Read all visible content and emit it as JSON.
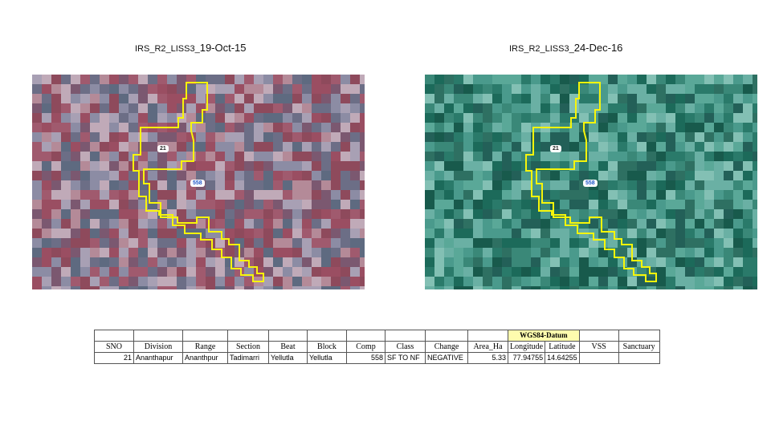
{
  "left_image": {
    "title_prefix": "IRS_R2_LISS3_",
    "title_date": "19-Oct-15",
    "polygon_labels": [
      "21",
      "558"
    ],
    "palette": [
      "#8e4a5c",
      "#a05a6e",
      "#7b5870",
      "#6c6e86",
      "#8c8ca4",
      "#b48a98",
      "#9a4e62",
      "#5e6a80",
      "#a8a0b4",
      "#c0aab8"
    ]
  },
  "right_image": {
    "title_prefix": "IRS_R2_LISS3_",
    "title_date": "24-Dec-16",
    "polygon_labels": [
      "21",
      "558"
    ],
    "palette": [
      "#1c6a5a",
      "#2a7a6a",
      "#236058",
      "#3a8878",
      "#4a9a8c",
      "#5aa898",
      "#185a4c",
      "#2e7062",
      "#6ab0a4",
      "#83c0b4"
    ]
  },
  "boundary_color": "#f7f50a",
  "table": {
    "datum_label": "WGS84-Datum",
    "headers": [
      "SNO",
      "Division",
      "Range",
      "Section",
      "Beat",
      "Block",
      "Comp",
      "Class",
      "Change",
      "Area_Ha",
      "Longitude",
      "Latitude",
      "VSS",
      "Sanctuary"
    ],
    "row": [
      "21",
      "Ananthapur",
      "Ananthpur",
      "Tadimarri",
      "Yellutla",
      "Yellutla",
      "558",
      "SF TO NF",
      "NEGATIVE",
      "5.33",
      "77.94755",
      "14.64255",
      "",
      ""
    ]
  }
}
